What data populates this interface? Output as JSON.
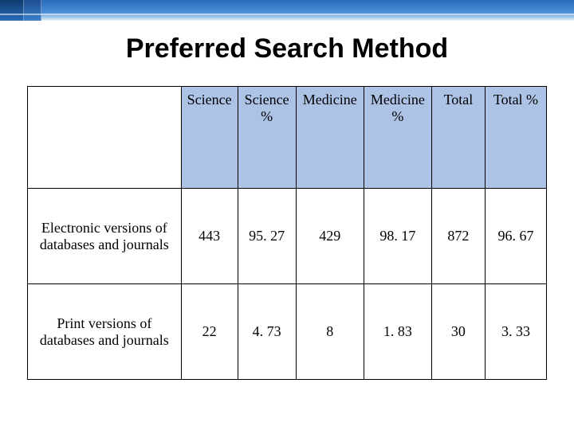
{
  "title": "Preferred Search Method",
  "table": {
    "header_bg": "#adc3e6",
    "border_color": "#000000",
    "columns": [
      {
        "label": "",
        "key": "label"
      },
      {
        "label": "Science",
        "key": "science"
      },
      {
        "label": "Science %",
        "key": "science_pct"
      },
      {
        "label": "Medicine",
        "key": "medicine"
      },
      {
        "label": "Medicine %",
        "key": "medicine_pct"
      },
      {
        "label": "Total",
        "key": "total"
      },
      {
        "label": "Total %",
        "key": "total_pct"
      }
    ],
    "rows": [
      {
        "label": "Electronic versions of databases and journals",
        "science": "443",
        "science_pct": "95. 27",
        "medicine": "429",
        "medicine_pct": "98. 17",
        "total": "872",
        "total_pct": "96. 67"
      },
      {
        "label": "Print versions of databases and journals",
        "science": "22",
        "science_pct": "4. 73",
        "medicine": "8",
        "medicine_pct": "1. 83",
        "total": "30",
        "total_pct": "3. 33"
      }
    ],
    "title_fontsize": 34,
    "cell_fontsize": 18,
    "font_family_title": "Arial",
    "font_family_cells": "Times New Roman"
  },
  "banner_colors": {
    "dark": "#1a4d8f",
    "mid": "#2a6bb8",
    "light": "#4a8fd6",
    "fade": "#e8f0fa"
  }
}
